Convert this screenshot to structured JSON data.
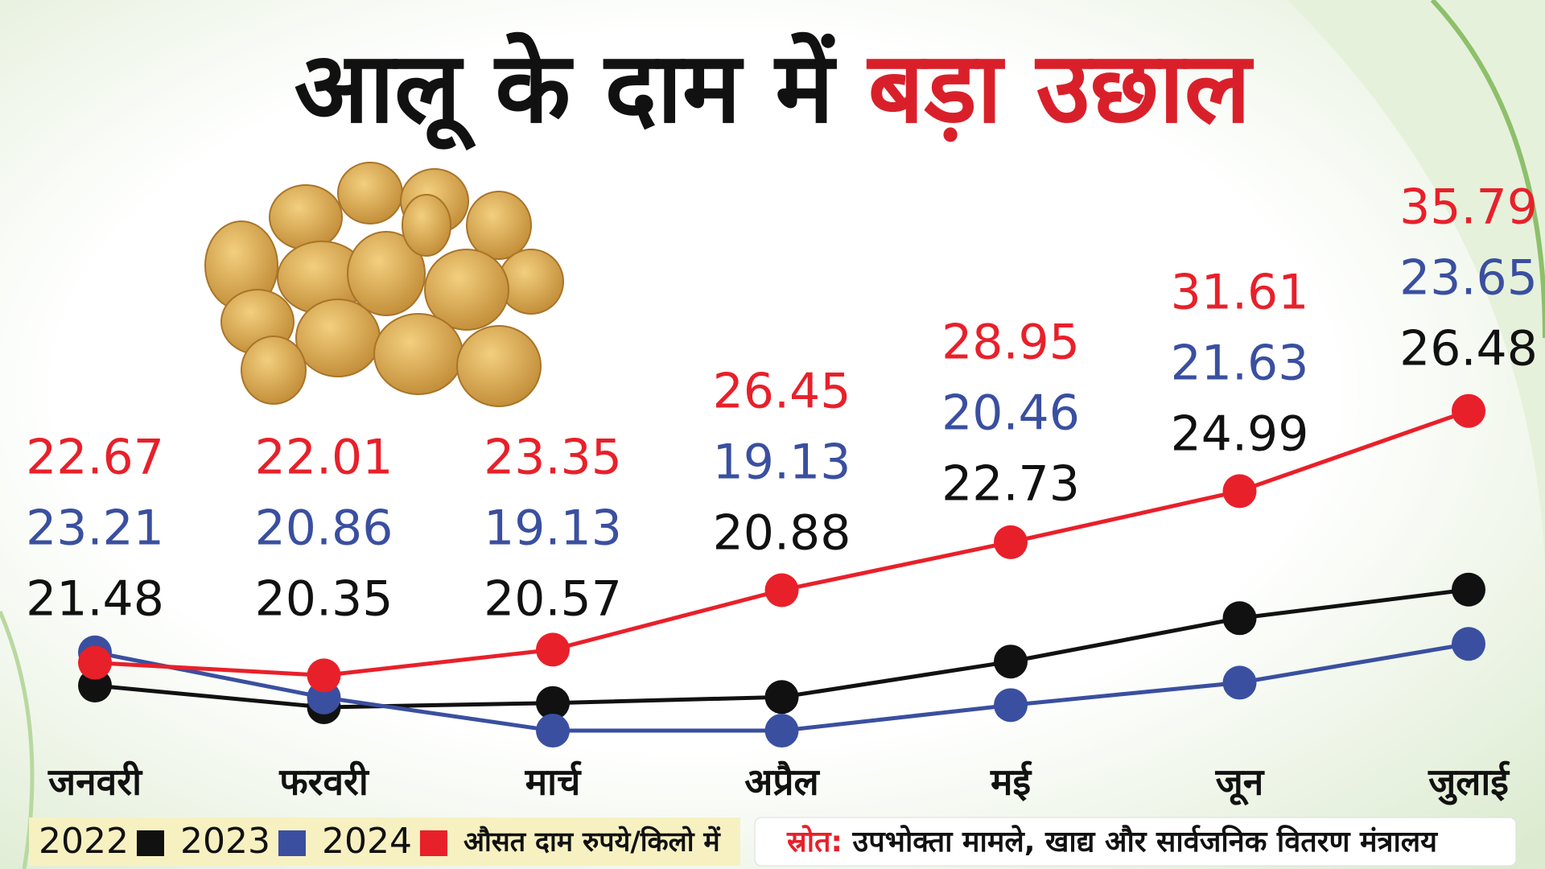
{
  "chart_data": {
    "type": "line",
    "title": "आलू के दाम में",
    "title_highlight": "बड़ा उछाल",
    "categories": [
      "जनवरी",
      "फरवरी",
      "मार्च",
      "अप्रैल",
      "मई",
      "जून",
      "जुलाई"
    ],
    "series": [
      {
        "name": "2022",
        "color": "#111111",
        "values": [
          21.48,
          20.35,
          20.57,
          20.88,
          22.73,
          24.99,
          26.48
        ]
      },
      {
        "name": "2023",
        "color": "#3a4fa0",
        "values": [
          23.21,
          20.86,
          19.13,
          19.13,
          20.46,
          21.63,
          23.65
        ]
      },
      {
        "name": "2024",
        "color": "#e8202a",
        "values": [
          22.67,
          22.01,
          23.35,
          26.45,
          28.95,
          31.61,
          35.79
        ]
      }
    ],
    "ylim": [
      18,
      38
    ],
    "unit_note": "औसत दाम रुपये/किलो में",
    "source_label": "स्रोत:",
    "source": "उपभोक्ता मामले, खाद्य और सार्वजनिक वितरण मंत्रालय"
  }
}
